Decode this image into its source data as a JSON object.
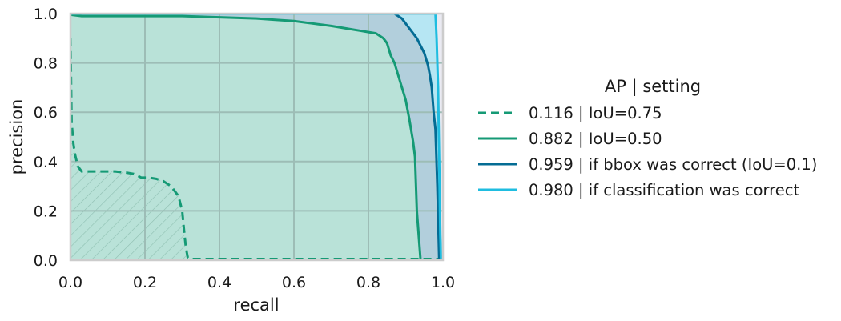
{
  "chart_data": {
    "type": "line",
    "xlabel": "recall",
    "ylabel": "precision",
    "xlim": [
      0.0,
      1.0
    ],
    "ylim": [
      0.0,
      1.0
    ],
    "xticks": [
      "0.0",
      "0.2",
      "0.4",
      "0.6",
      "0.8",
      "1.0"
    ],
    "yticks": [
      "0.0",
      "0.2",
      "0.4",
      "0.6",
      "0.8",
      "1.0"
    ],
    "grid": true,
    "legend": {
      "title": "AP | setting",
      "placement": "right-outside"
    },
    "series": [
      {
        "name": "0.116 | IoU=0.75",
        "color": "#159a75",
        "style": "dashed",
        "fill": "hatched",
        "x": [
          0.0,
          0.003,
          0.008,
          0.012,
          0.02,
          0.03,
          0.05,
          0.08,
          0.12,
          0.15,
          0.17,
          0.19,
          0.21,
          0.23,
          0.25,
          0.27,
          0.29,
          0.3,
          0.305,
          0.31,
          0.315,
          0.32,
          0.33,
          0.5,
          0.7,
          0.9,
          1.0
        ],
        "y": [
          0.9,
          0.56,
          0.47,
          0.43,
          0.38,
          0.36,
          0.36,
          0.36,
          0.36,
          0.355,
          0.35,
          0.335,
          0.335,
          0.33,
          0.32,
          0.3,
          0.26,
          0.2,
          0.12,
          0.05,
          0.01,
          0.005,
          0.005,
          0.005,
          0.005,
          0.005,
          0.005
        ]
      },
      {
        "name": "0.882 | IoU=0.50",
        "color": "#159a75",
        "style": "solid",
        "fill": "solid",
        "x": [
          0.0,
          0.002,
          0.03,
          0.1,
          0.2,
          0.3,
          0.4,
          0.5,
          0.55,
          0.6,
          0.65,
          0.7,
          0.74,
          0.78,
          0.8,
          0.82,
          0.84,
          0.85,
          0.86,
          0.87,
          0.88,
          0.89,
          0.9,
          0.91,
          0.92,
          0.925,
          0.93,
          0.94
        ],
        "y": [
          1.0,
          0.995,
          0.99,
          0.99,
          0.99,
          0.99,
          0.985,
          0.98,
          0.975,
          0.97,
          0.96,
          0.95,
          0.94,
          0.93,
          0.925,
          0.92,
          0.9,
          0.88,
          0.83,
          0.8,
          0.75,
          0.7,
          0.65,
          0.57,
          0.48,
          0.42,
          0.2,
          0.0
        ]
      },
      {
        "name": "0.959 | if bbox was correct (IoU=0.1)",
        "color": "#046c94",
        "style": "solid",
        "fill": "solid",
        "x": [
          0.0,
          0.5,
          0.8,
          0.85,
          0.87,
          0.88,
          0.89,
          0.9,
          0.91,
          0.92,
          0.93,
          0.94,
          0.95,
          0.96,
          0.965,
          0.97,
          0.975,
          0.98,
          0.985,
          0.99
        ],
        "y": [
          1.0,
          1.0,
          1.0,
          1.0,
          1.0,
          0.99,
          0.98,
          0.96,
          0.94,
          0.92,
          0.9,
          0.87,
          0.84,
          0.79,
          0.75,
          0.7,
          0.6,
          0.53,
          0.3,
          0.0
        ]
      },
      {
        "name": "0.980 | if classification was correct",
        "color": "#1fbde0",
        "style": "solid",
        "fill": "solid",
        "x": [
          0.0,
          0.97,
          0.98,
          0.983,
          0.987,
          0.99,
          0.993,
          0.995
        ],
        "y": [
          1.0,
          1.0,
          1.0,
          0.9,
          0.7,
          0.4,
          0.1,
          0.0
        ]
      }
    ]
  }
}
